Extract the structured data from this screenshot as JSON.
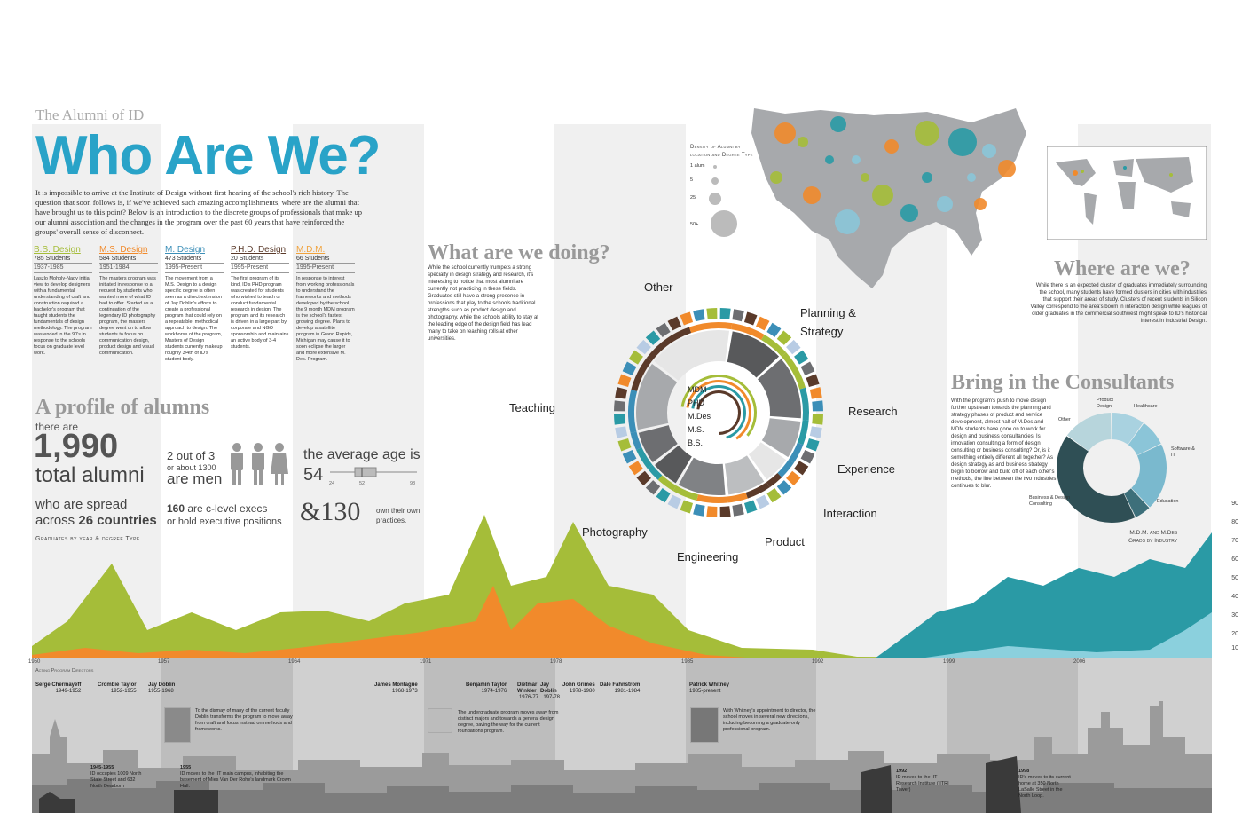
{
  "colors": {
    "bs": "#a5bd39",
    "ms": "#f18a2b",
    "m": "#3c8fb8",
    "phd": "#5a3a2a",
    "mdm": "#f0a23c",
    "teal": "#2a9aa5",
    "title_blue": "#29a3c8",
    "grey": "#c8c8c8"
  },
  "header": {
    "kicker": "The Alumni of ID",
    "title": "Who Are We?"
  },
  "intro": "It is impossible to arrive at the Institute of Design without first hearing of the school's rich history. The question that soon follows is, if we've achieved such amazing accomplishments, where are the alumni that have brought us to this point? Below is an introduction to the discrete groups of professionals that make up our alumni association and the changes in the program over the past 60 years that have reinforced the groups' overall sense of disconnect.",
  "degrees": [
    {
      "name": "B.S. Design",
      "students": "785 Students",
      "years": "1937-1985",
      "desc": "Laszlo Moholy-Nagy initial view to develop designers with a fundamental understanding of craft and construction required a bachelor's program that taught students the fundamentals of design methodology. The program was ended in the 90's in response to the schools focus on graduate level work."
    },
    {
      "name": "M.S. Design",
      "students": "584 Students",
      "years": "1951-1984",
      "desc": "The masters program was initiated in response to a request by students who wanted more of what ID had to offer. Started as a continuation of the legendary ID photography program, the masters degree went on to allow students to focus on communication design, product design and visual communication."
    },
    {
      "name": "M. Design",
      "students": "473 Students",
      "years": "1995-Present",
      "desc": "The movement from a M.S. Design to a design specific degree is often seen as a direct extension of Jay Doblin's efforts to create a professional program that could rely on a repeatable, methodical approach to design. The workhorse of the program, Masters of Design students currently makeup roughly 3/4th of ID's student body."
    },
    {
      "name": "P.H.D. Design",
      "students": "20 Students",
      "years": "1995-Present",
      "desc": "The first program of its kind, ID's PHD program was created for students who wished to teach or conduct fundamental research in design. The program and its research is driven in a large part by corporate and NGO sponsorship and maintains an active body of 3-4 students."
    },
    {
      "name": "M.D.M.",
      "students": "66 Students",
      "years": "1995-Present",
      "desc": "In response to interest from working professionals to understand the frameworks and methods developed by the school, the 9 month MDM program is the school's fastest growing degree. Plans to develop a satellite program in Grand Rapids, Michigan may cause it to soon eclipse the larger and more extensive M. Des. Program."
    }
  ],
  "profile": {
    "heading": "A profile of alumns",
    "there_are": "there are",
    "total": "1,990",
    "total_label": "total alumni",
    "spread_1": "who are spread",
    "spread_2a": "across ",
    "spread_2b": "26 countries",
    "men_1": "2 out of 3",
    "men_2": "or about 1300",
    "men_3": "are men",
    "execs_num": "160",
    "execs_1": " are c-level execs",
    "execs_2": "or hold executive positions",
    "age_label": "the average age is",
    "age_value": "54",
    "age_min": "24",
    "age_mid": "52",
    "age_max": "98",
    "practices_num": "&130",
    "practices_label": "own their own practices.",
    "grad_label": "Graduates by year & degree Type"
  },
  "doing": {
    "heading": "What are we doing?",
    "text": "While the school currently trumpets a strong specialty in design strategy and research, it's interesting to notice that most alumni are currently not practicing in these fields. Graduates still have a strong presence in professions that play to the schools traditional strengths such as product design and photography, while the schools ability to stay at the leading edge of the design field has lead many to take on teaching rolls at other universities.",
    "ring_labels": [
      "Other",
      "Planning & Strategy",
      "Teaching",
      "Research",
      "Experience",
      "Interaction",
      "Photography",
      "Product",
      "Engineering"
    ],
    "inner_labels": [
      "MDM",
      "PHD",
      "M.Des",
      "M.S.",
      "B.S."
    ]
  },
  "map": {
    "legend_title_1": "Density of Alumni by",
    "legend_title_2": "location and Degree Type",
    "legend": [
      "1 alum",
      "5",
      "25",
      "50+"
    ]
  },
  "where": {
    "heading": "Where are we?",
    "text": "While there is an expected cluster of graduates immediately surrounding the school, many students have formed clusters in cities with industries that support their areas of study. Clusters of recent students in Silicon Valley correspond to the area's boom in interaction design while leagues of older graduates in the commercial southwest might speak to ID's historical interest in Industrial Design."
  },
  "consult": {
    "heading": "Bring in the Consultants",
    "text": "With the program's push to move design further upstream towards the planning and strategy phases of product and service development, almost half of M.Des and MDM students have gone on to work for design and business consultancies. Is innovation consulting a form of design consulting or business consulting? Or, is it something entirely different all together? As design strategy as and business strategy begin to borrow and build off of each other's methods, the line between the two industries continues to blur.",
    "donut_labels": [
      "Product Design",
      "Healthcare",
      "Software & IT",
      "Education",
      "Business & Design Consulting",
      "Other"
    ],
    "caption_1": "M.D.M. and M.Des",
    "caption_2": "Grads by Industry"
  },
  "timeline": {
    "ticks": [
      "1950",
      "1957",
      "1964",
      "1971",
      "1978",
      "1985",
      "1992",
      "1999",
      "2006"
    ],
    "yaxis": [
      "90",
      "80",
      "70",
      "60",
      "50",
      "40",
      "30",
      "20",
      "10"
    ],
    "directors_label": "Acting Program Directors",
    "directors": [
      {
        "name": "Serge Chermayeff",
        "years": "1949-1952"
      },
      {
        "name": "Crombie Taylor",
        "years": "1952-1955"
      },
      {
        "name": "Jay Doblin",
        "years": "1955-1968"
      },
      {
        "name": "James Montague",
        "years": "1968-1973"
      },
      {
        "name": "Benjamin Taylor",
        "years": "1974-1976"
      },
      {
        "name": "Dietmar Winkler",
        "years": "1976-77"
      },
      {
        "name": "Jay Doblin",
        "years": "197-78"
      },
      {
        "name": "John Grimes",
        "years": "1978-1980"
      },
      {
        "name": "Dale Fahnstrom",
        "years": "1981-1984"
      },
      {
        "name": "Patrick Whitney",
        "years": "1985-present"
      }
    ],
    "notes": [
      "To the dismay of many of the current faculty Doblin transforms the program to move away from craft and focus instead on methods and frameworks.",
      "The undergraduate program moves away from distinct majors and towards a general design degree, paving the way for the current foundations program.",
      "With Whitney's appointment to director, the school moves in several new directions, including becoming a graduate-only professional program."
    ],
    "events": [
      {
        "year": "1945-1955",
        "text": "ID occupies 1009 North State Street and 632 North Dearborn"
      },
      {
        "year": "1955",
        "text": "ID moves to the IIT main campus, inhabiting the basement of Mies Van Der Rohe's landmark Crown Hall."
      },
      {
        "year": "1992",
        "text": "ID moves to the IIT Research Institute (IITRI Tower)"
      },
      {
        "year": "1998",
        "text": "ID's moves to its current home at 350 North LaSalle Street in the North Loop."
      }
    ]
  }
}
